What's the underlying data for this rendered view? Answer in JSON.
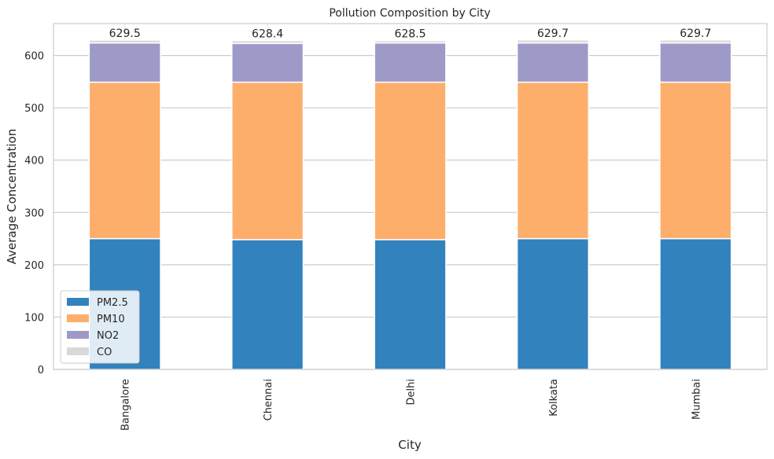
{
  "chart_data": {
    "type": "bar",
    "stacked": true,
    "title": "Pollution Composition by City",
    "xlabel": "City",
    "ylabel": "Average Concentration",
    "categories": [
      "Bangalore",
      "Chennai",
      "Delhi",
      "Kolkata",
      "Mumbai"
    ],
    "series": [
      {
        "name": "PM2.5",
        "color": "#3182bd",
        "values": [
          250,
          248,
          248,
          250,
          250
        ]
      },
      {
        "name": "PM10",
        "color": "#fdae6b",
        "values": [
          299,
          301,
          301,
          299,
          299
        ]
      },
      {
        "name": "NO2",
        "color": "#9e9ac8",
        "values": [
          75,
          74,
          75,
          75,
          75
        ]
      },
      {
        "name": "CO",
        "color": "#d9d9d9",
        "values": [
          5.5,
          5.4,
          4.5,
          5.7,
          5.7
        ]
      }
    ],
    "totals": [
      "629.5",
      "628.4",
      "628.5",
      "629.7",
      "629.7"
    ],
    "ylim": [
      0,
      661
    ],
    "yticks": [
      0,
      100,
      200,
      300,
      400,
      500,
      600
    ],
    "grid": true,
    "legend_position": "lower-left"
  }
}
